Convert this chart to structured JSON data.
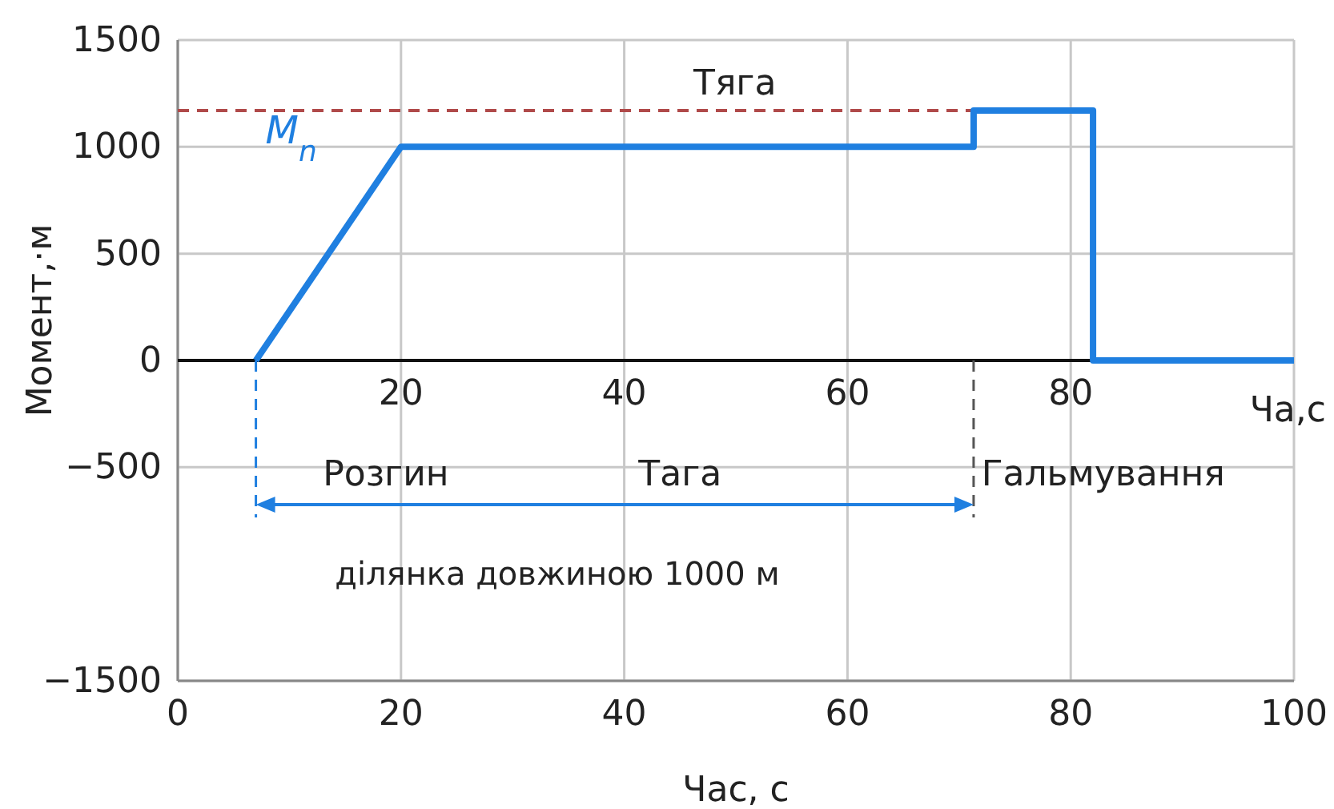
{
  "chart_data": {
    "type": "line",
    "xlabel": "Час, с",
    "ylabel": "Момент,·м",
    "x2label": "Ча,с",
    "xlim": [
      0,
      100
    ],
    "xticks": [
      0,
      20,
      40,
      60,
      80,
      100
    ],
    "x2lim": [
      0,
      100
    ],
    "x2ticks": [
      20,
      40,
      60,
      80
    ],
    "ylim": [
      -1500,
      1500
    ],
    "yticks": [
      {
        "value": -1500,
        "label": "−1500"
      },
      {
        "value": -500,
        "label": "−500"
      },
      0,
      500,
      1000,
      1500
    ],
    "grid": true,
    "marker": "none",
    "series": [
      {
        "name": "M$_{n}$",
        "color": "#1f7fe0",
        "x": [
          7,
          20,
          71.3,
          71.3,
          82,
          82,
          100
        ],
        "values": [
          0,
          1000,
          1000,
          1170,
          1170,
          0,
          0
        ]
      },
      {
        "name": "Тяга",
        "color": "#b04a4a",
        "line_style": "dashed",
        "x": [
          0,
          71.3
        ],
        "values": [
          1170,
          1170
        ]
      }
    ],
    "ref_lines": [
      {
        "axis": "x",
        "value": 7,
        "label": null,
        "color": "#1f7fe0",
        "line_style": "dashed"
      },
      {
        "axis": "x",
        "value": 71.3,
        "label": null,
        "color": "#555555",
        "line_style": "dashed"
      }
    ],
    "annotations": [
      "Розгин",
      "Тага",
      "Гальмування",
      "ділянка довжиною 1000 м"
    ]
  }
}
